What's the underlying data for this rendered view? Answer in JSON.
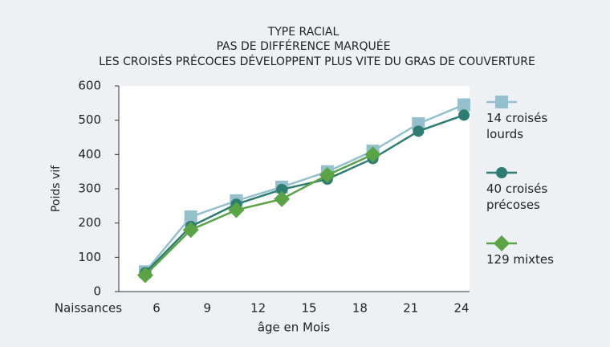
{
  "chart_data": {
    "type": "line",
    "title": [
      "TYPE RACIAL",
      "PAS DE DIFFÉRENCE MARQUÉE",
      "LES CROISÉS PRÉCOCES DÉVELOPPENT PLUS VITE DU GRAS DE COUVERTURE"
    ],
    "x_label": "âge en Mois",
    "y_label": "Poids vif",
    "categories": [
      "Naissances",
      "6",
      "9",
      "12",
      "15",
      "18",
      "21",
      "24"
    ],
    "series": [
      {
        "name": "14 croisés lourds",
        "color": "#93c0cc",
        "marker": "square",
        "values": [
          58,
          218,
          265,
          305,
          350,
          410,
          490,
          545
        ]
      },
      {
        "name": "40 croisés précoses",
        "color": "#2e7d73",
        "marker": "circle",
        "values": [
          55,
          190,
          255,
          298,
          328,
          388,
          468,
          515
        ]
      },
      {
        "name": "129 mixtes",
        "color": "#5aa445",
        "marker": "diamond",
        "values": [
          48,
          180,
          238,
          270,
          340,
          400,
          null,
          null
        ]
      }
    ],
    "ylim": [
      0,
      600
    ],
    "yticks": [
      0,
      100,
      200,
      300,
      400,
      500,
      600
    ],
    "grid": false,
    "legend": "right"
  }
}
